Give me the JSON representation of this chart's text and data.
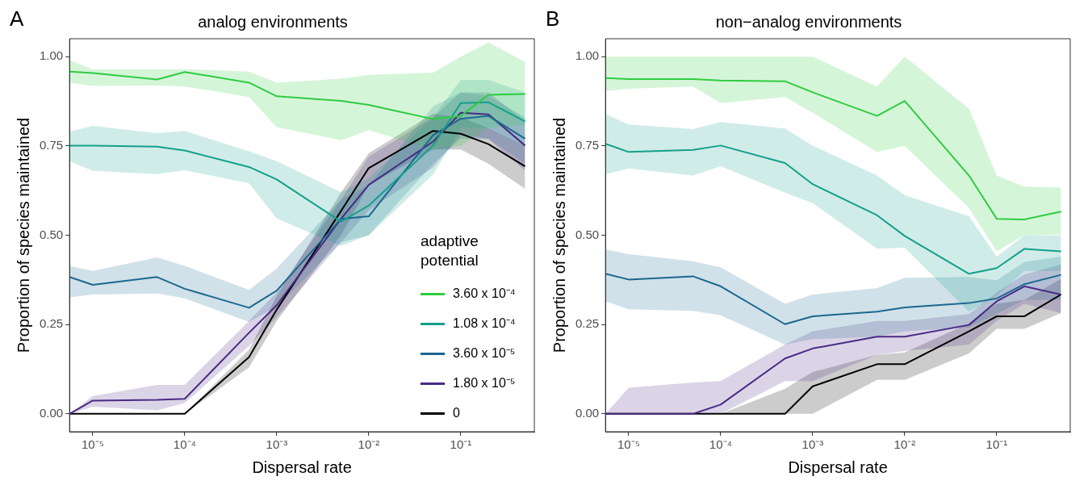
{
  "chart_data": [
    {
      "type": "line",
      "title": "analog environments",
      "xlabel": "Dispersal rate",
      "ylabel": "Proportion of species maintained",
      "annotations": [
        "A"
      ],
      "log": "x",
      "grid": false,
      "marker": "none",
      "legend": "bottom right",
      "legend_title": "adaptive potential",
      "x": [
        5.6e-06,
        1e-05,
        5e-05,
        0.0001,
        0.0005,
        0.001,
        0.005,
        0.01,
        0.05,
        0.1,
        0.2,
        0.5
      ],
      "xlim": [
        5.6e-06,
        0.63
      ],
      "xticks": [
        {
          "value": 1e-05,
          "label": "10⁻⁵"
        },
        {
          "value": 0.0001,
          "label": "10⁻⁴"
        },
        {
          "value": 0.001,
          "label": "10⁻³"
        },
        {
          "value": 0.01,
          "label": "10⁻²"
        },
        {
          "value": 0.1,
          "label": "10⁻¹"
        }
      ],
      "ylim": [
        -0.05,
        1.05
      ],
      "yticks": [
        {
          "value": 0,
          "label": "0.00"
        },
        {
          "value": 0.25,
          "label": "0.25"
        },
        {
          "value": 0.5,
          "label": "0.50"
        },
        {
          "value": 0.75,
          "label": "0.75"
        },
        {
          "value": 1,
          "label": "1.00"
        }
      ],
      "series": [
        {
          "name": "3.60 x 10⁻⁴",
          "color": "#2ecc40",
          "values": [
            0.958,
            0.954,
            0.936,
            0.957,
            0.927,
            0.889,
            0.876,
            0.865,
            0.825,
            0.834,
            0.893,
            0.895
          ],
          "lower": [
            0.927,
            0.918,
            0.919,
            0.916,
            0.887,
            0.802,
            0.766,
            0.794,
            0.74,
            0.75,
            0.8,
            0.81
          ],
          "upper": [
            0.99,
            0.964,
            0.964,
            0.965,
            0.958,
            0.927,
            0.938,
            0.949,
            0.955,
            1.0,
            1.04,
            0.985
          ]
        },
        {
          "name": "1.08 x 10⁻⁴",
          "color": "#13a08a",
          "values": [
            0.751,
            0.751,
            0.748,
            0.737,
            0.691,
            0.656,
            0.538,
            0.583,
            0.751,
            0.87,
            0.872,
            0.819
          ],
          "lower": [
            0.707,
            0.68,
            0.671,
            0.682,
            0.645,
            0.547,
            0.47,
            0.5,
            0.67,
            0.8,
            0.8,
            0.75
          ],
          "upper": [
            0.79,
            0.806,
            0.786,
            0.792,
            0.735,
            0.707,
            0.62,
            0.66,
            0.83,
            0.935,
            0.935,
            0.9
          ]
        },
        {
          "name": "3.60 x 10⁻⁵",
          "color": "#1b6790",
          "values": [
            0.383,
            0.361,
            0.383,
            0.35,
            0.297,
            0.345,
            0.546,
            0.553,
            0.78,
            0.826,
            0.834,
            0.77
          ],
          "lower": [
            0.326,
            0.334,
            0.337,
            0.323,
            0.257,
            0.3,
            0.48,
            0.5,
            0.7,
            0.77,
            0.77,
            0.7
          ],
          "upper": [
            0.414,
            0.4,
            0.438,
            0.414,
            0.347,
            0.407,
            0.6,
            0.64,
            0.86,
            0.9,
            0.89,
            0.83
          ]
        },
        {
          "name": "1.80 x 10⁻⁵",
          "color": "#4a2a85",
          "values": [
            0,
            0.037,
            0.039,
            0.042,
            0.227,
            0.304,
            0.546,
            0.641,
            0.762,
            0.843,
            0.838,
            0.751
          ],
          "lower": [
            0,
            0.02,
            0.01,
            0.03,
            0.19,
            0.27,
            0.48,
            0.57,
            0.69,
            0.78,
            0.77,
            0.68
          ],
          "upper": [
            0,
            0.05,
            0.081,
            0.081,
            0.26,
            0.34,
            0.6,
            0.72,
            0.83,
            0.9,
            0.9,
            0.82
          ]
        },
        {
          "name": "0",
          "color": "#000000",
          "values": [
            0,
            0,
            0,
            0,
            0.159,
            0.292,
            0.568,
            0.688,
            0.792,
            0.784,
            0.755,
            0.693
          ],
          "lower": [
            0,
            0,
            0,
            0,
            0.13,
            0.26,
            0.5,
            0.64,
            0.74,
            0.74,
            0.7,
            0.63
          ],
          "upper": [
            0,
            0,
            0,
            0,
            0.18,
            0.33,
            0.62,
            0.73,
            0.84,
            0.83,
            0.8,
            0.75
          ]
        }
      ]
    },
    {
      "type": "line",
      "title": "non−analog environments",
      "xlabel": "Dispersal rate",
      "ylabel": "Proportion of species maintained",
      "annotations": [
        "B"
      ],
      "log": "x",
      "grid": false,
      "marker": "none",
      "x": [
        5.6e-06,
        1e-05,
        5e-05,
        0.0001,
        0.0005,
        0.001,
        0.005,
        0.01,
        0.05,
        0.1,
        0.2,
        0.5
      ],
      "xlim": [
        5.6e-06,
        0.63
      ],
      "xticks": [
        {
          "value": 1e-05,
          "label": "10⁻⁵"
        },
        {
          "value": 0.0001,
          "label": "10⁻⁴"
        },
        {
          "value": 0.001,
          "label": "10⁻³"
        },
        {
          "value": 0.01,
          "label": "10⁻²"
        },
        {
          "value": 0.1,
          "label": "10⁻¹"
        }
      ],
      "ylim": [
        -0.05,
        1.05
      ],
      "yticks": [
        {
          "value": 0,
          "label": "0.00"
        },
        {
          "value": 0.25,
          "label": "0.25"
        },
        {
          "value": 0.5,
          "label": "0.50"
        },
        {
          "value": 0.75,
          "label": "0.75"
        },
        {
          "value": 1,
          "label": "1.00"
        }
      ],
      "series": [
        {
          "color": "#2ecc40",
          "values": [
            0.94,
            0.937,
            0.937,
            0.933,
            0.931,
            0.9,
            0.834,
            0.876,
            0.667,
            0.546,
            0.544,
            0.566
          ],
          "lower": [
            0.903,
            0.91,
            0.916,
            0.87,
            0.887,
            0.843,
            0.733,
            0.75,
            0.576,
            0.455,
            0.5,
            0.502
          ],
          "upper": [
            1.0,
            1.0,
            1.0,
            1.0,
            1.0,
            1.0,
            0.916,
            1.0,
            0.854,
            0.667,
            0.636,
            0.634
          ]
        },
        {
          "color": "#13a08a",
          "values": [
            0.756,
            0.733,
            0.739,
            0.751,
            0.702,
            0.643,
            0.556,
            0.498,
            0.392,
            0.408,
            0.462,
            0.455
          ],
          "lower": [
            0.671,
            0.687,
            0.667,
            0.693,
            0.619,
            0.59,
            0.462,
            0.465,
            0.286,
            0.33,
            0.4,
            0.4
          ],
          "upper": [
            0.839,
            0.81,
            0.797,
            0.817,
            0.799,
            0.751,
            0.667,
            0.612,
            0.553,
            0.44,
            0.5,
            0.5
          ]
        },
        {
          "color": "#1b6790",
          "values": [
            0.392,
            0.376,
            0.385,
            0.357,
            0.251,
            0.273,
            0.286,
            0.298,
            0.31,
            0.323,
            0.363,
            0.389
          ],
          "lower": [
            0.315,
            0.293,
            0.288,
            0.276,
            0.194,
            0.209,
            0.216,
            0.231,
            0.242,
            0.28,
            0.319,
            0.32
          ],
          "upper": [
            0.46,
            0.447,
            0.427,
            0.41,
            0.308,
            0.334,
            0.352,
            0.381,
            0.383,
            0.374,
            0.425,
            0.44
          ]
        },
        {
          "color": "#4a2a85",
          "values": [
            0,
            0,
            0,
            0.026,
            0.155,
            0.183,
            0.216,
            0.216,
            0.249,
            0.315,
            0.357,
            0.334
          ],
          "lower": [
            0,
            0,
            0,
            0,
            0.092,
            0.092,
            0.165,
            0.176,
            0.194,
            0.26,
            0.308,
            0.282
          ],
          "upper": [
            0,
            0.073,
            0.088,
            0.092,
            0.194,
            0.231,
            0.26,
            0.26,
            0.279,
            0.34,
            0.39,
            0.418
          ]
        },
        {
          "color": "#000000",
          "values": [
            0,
            0,
            0,
            0,
            0,
            0.077,
            0.139,
            0.139,
            0.231,
            0.273,
            0.273,
            0.334
          ],
          "lower": [
            0,
            0,
            0,
            0,
            0,
            0,
            0.095,
            0.095,
            0.169,
            0.238,
            0.238,
            0.282
          ],
          "upper": [
            0,
            0,
            0,
            0,
            0.07,
            0.117,
            0.165,
            0.172,
            0.253,
            0.308,
            0.319,
            0.378
          ]
        }
      ]
    }
  ]
}
